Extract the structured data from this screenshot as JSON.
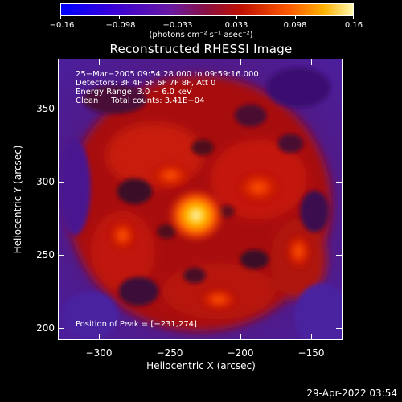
{
  "colorbar": {
    "ticks": [
      "−0.16",
      "−0.098",
      "−0.033",
      "0.033",
      "0.098",
      "0.16"
    ],
    "units": "(photons cm⁻² s⁻¹ asec⁻²)"
  },
  "title": "Reconstructed RHESSI Image",
  "annotation": {
    "time_range": "25−Mar−2005 09:54:28.000 to 09:59:16.000",
    "detectors": "Detectors: 3F 4F 5F 6F 7F 8F, Att 0",
    "energy": "Energy Range: 3.0 − 6.0 keV",
    "clean": "Clean     Total counts: 3.41E+04",
    "peak": "Position of Peak = [−231,274]"
  },
  "axes": {
    "xlabel": "Heliocentric X (arcsec)",
    "ylabel": "Heliocentric Y (arcsec)",
    "xticks": [
      "−300",
      "−250",
      "−200",
      "−150"
    ],
    "yticks": [
      "350",
      "300",
      "250",
      "200"
    ]
  },
  "timestamp": "29-Apr-2022 03:54"
}
